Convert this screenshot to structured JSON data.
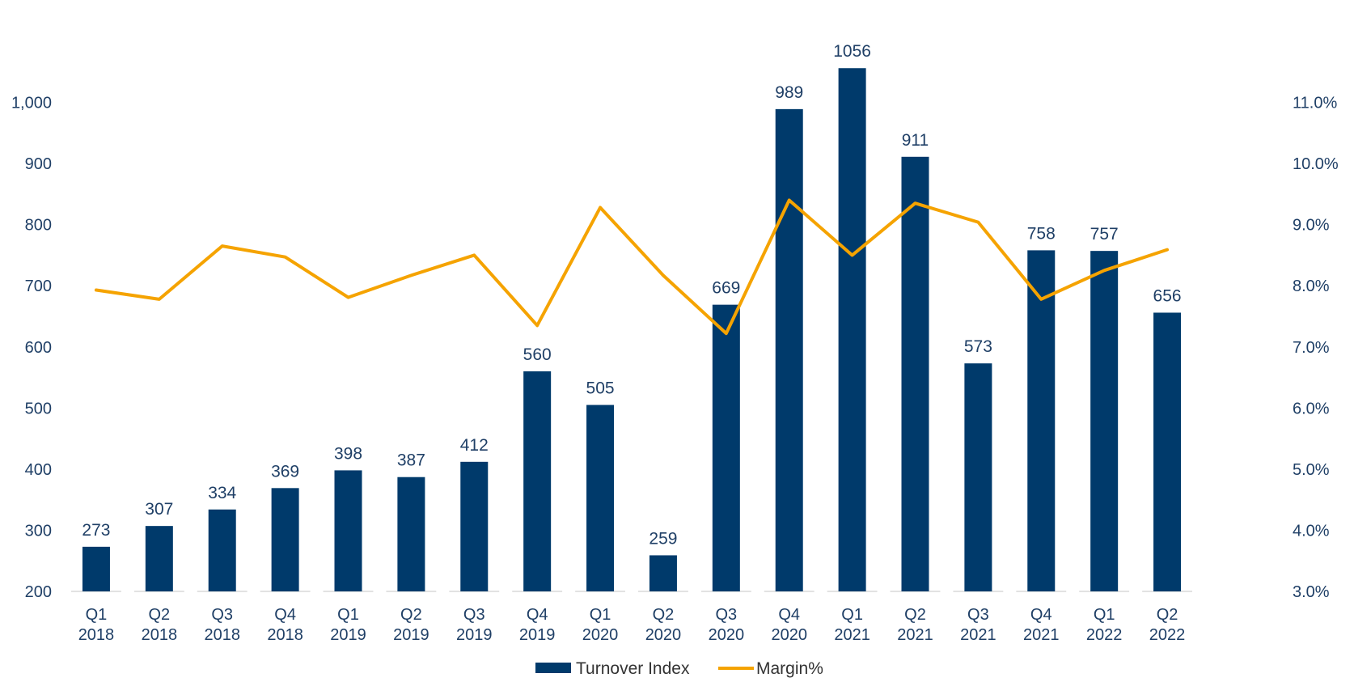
{
  "chart_data": {
    "type": "bar",
    "title": "",
    "xlabel": "",
    "ylabel": "",
    "categories": [
      [
        "Q1",
        "2018"
      ],
      [
        "Q2",
        "2018"
      ],
      [
        "Q3",
        "2018"
      ],
      [
        "Q4",
        "2018"
      ],
      [
        "Q1",
        "2019"
      ],
      [
        "Q2",
        "2019"
      ],
      [
        "Q3",
        "2019"
      ],
      [
        "Q4",
        "2019"
      ],
      [
        "Q1",
        "2020"
      ],
      [
        "Q2",
        "2020"
      ],
      [
        "Q3",
        "2020"
      ],
      [
        "Q4",
        "2020"
      ],
      [
        "Q1",
        "2021"
      ],
      [
        "Q2",
        "2021"
      ],
      [
        "Q3",
        "2021"
      ],
      [
        "Q4",
        "2021"
      ],
      [
        "Q1",
        "2022"
      ],
      [
        "Q2",
        "2022"
      ]
    ],
    "series": [
      {
        "name": "Turnover Index",
        "type": "bar",
        "axis": "left",
        "color": "#003a6b",
        "values": [
          273,
          307,
          334,
          369,
          398,
          387,
          412,
          560,
          505,
          259,
          669,
          989,
          1056,
          911,
          573,
          758,
          757,
          656
        ],
        "labels": [
          "273",
          "307",
          "334",
          "369",
          "398",
          "387",
          "412",
          "560",
          "505",
          "259",
          "669",
          "989",
          "1056",
          "911",
          "573",
          "758",
          "757",
          "656"
        ]
      },
      {
        "name": "Margin%",
        "type": "line",
        "axis": "right",
        "color": "#f5a300",
        "values": [
          7.93,
          7.78,
          8.65,
          8.47,
          7.81,
          8.17,
          8.5,
          7.35,
          9.28,
          8.17,
          7.22,
          9.4,
          8.5,
          9.35,
          9.04,
          7.78,
          8.25,
          8.59
        ]
      }
    ],
    "y_left": {
      "range": [
        200,
        1100
      ],
      "ticks": [
        200,
        300,
        400,
        500,
        600,
        700,
        800,
        900,
        1000
      ],
      "tick_labels": [
        "200",
        "300",
        "400",
        "500",
        "600",
        "700",
        "800",
        "900",
        "1,000"
      ]
    },
    "y_right": {
      "range": [
        3.0,
        12.0
      ],
      "ticks": [
        3,
        4,
        5,
        6,
        7,
        8,
        9,
        10,
        11
      ],
      "tick_labels": [
        "3.0%",
        "4.0%",
        "5.0%",
        "6.0%",
        "7.0%",
        "8.0%",
        "9.0%",
        "10.0%",
        "11.0%"
      ]
    },
    "grid": false,
    "legend_position": "bottom"
  }
}
